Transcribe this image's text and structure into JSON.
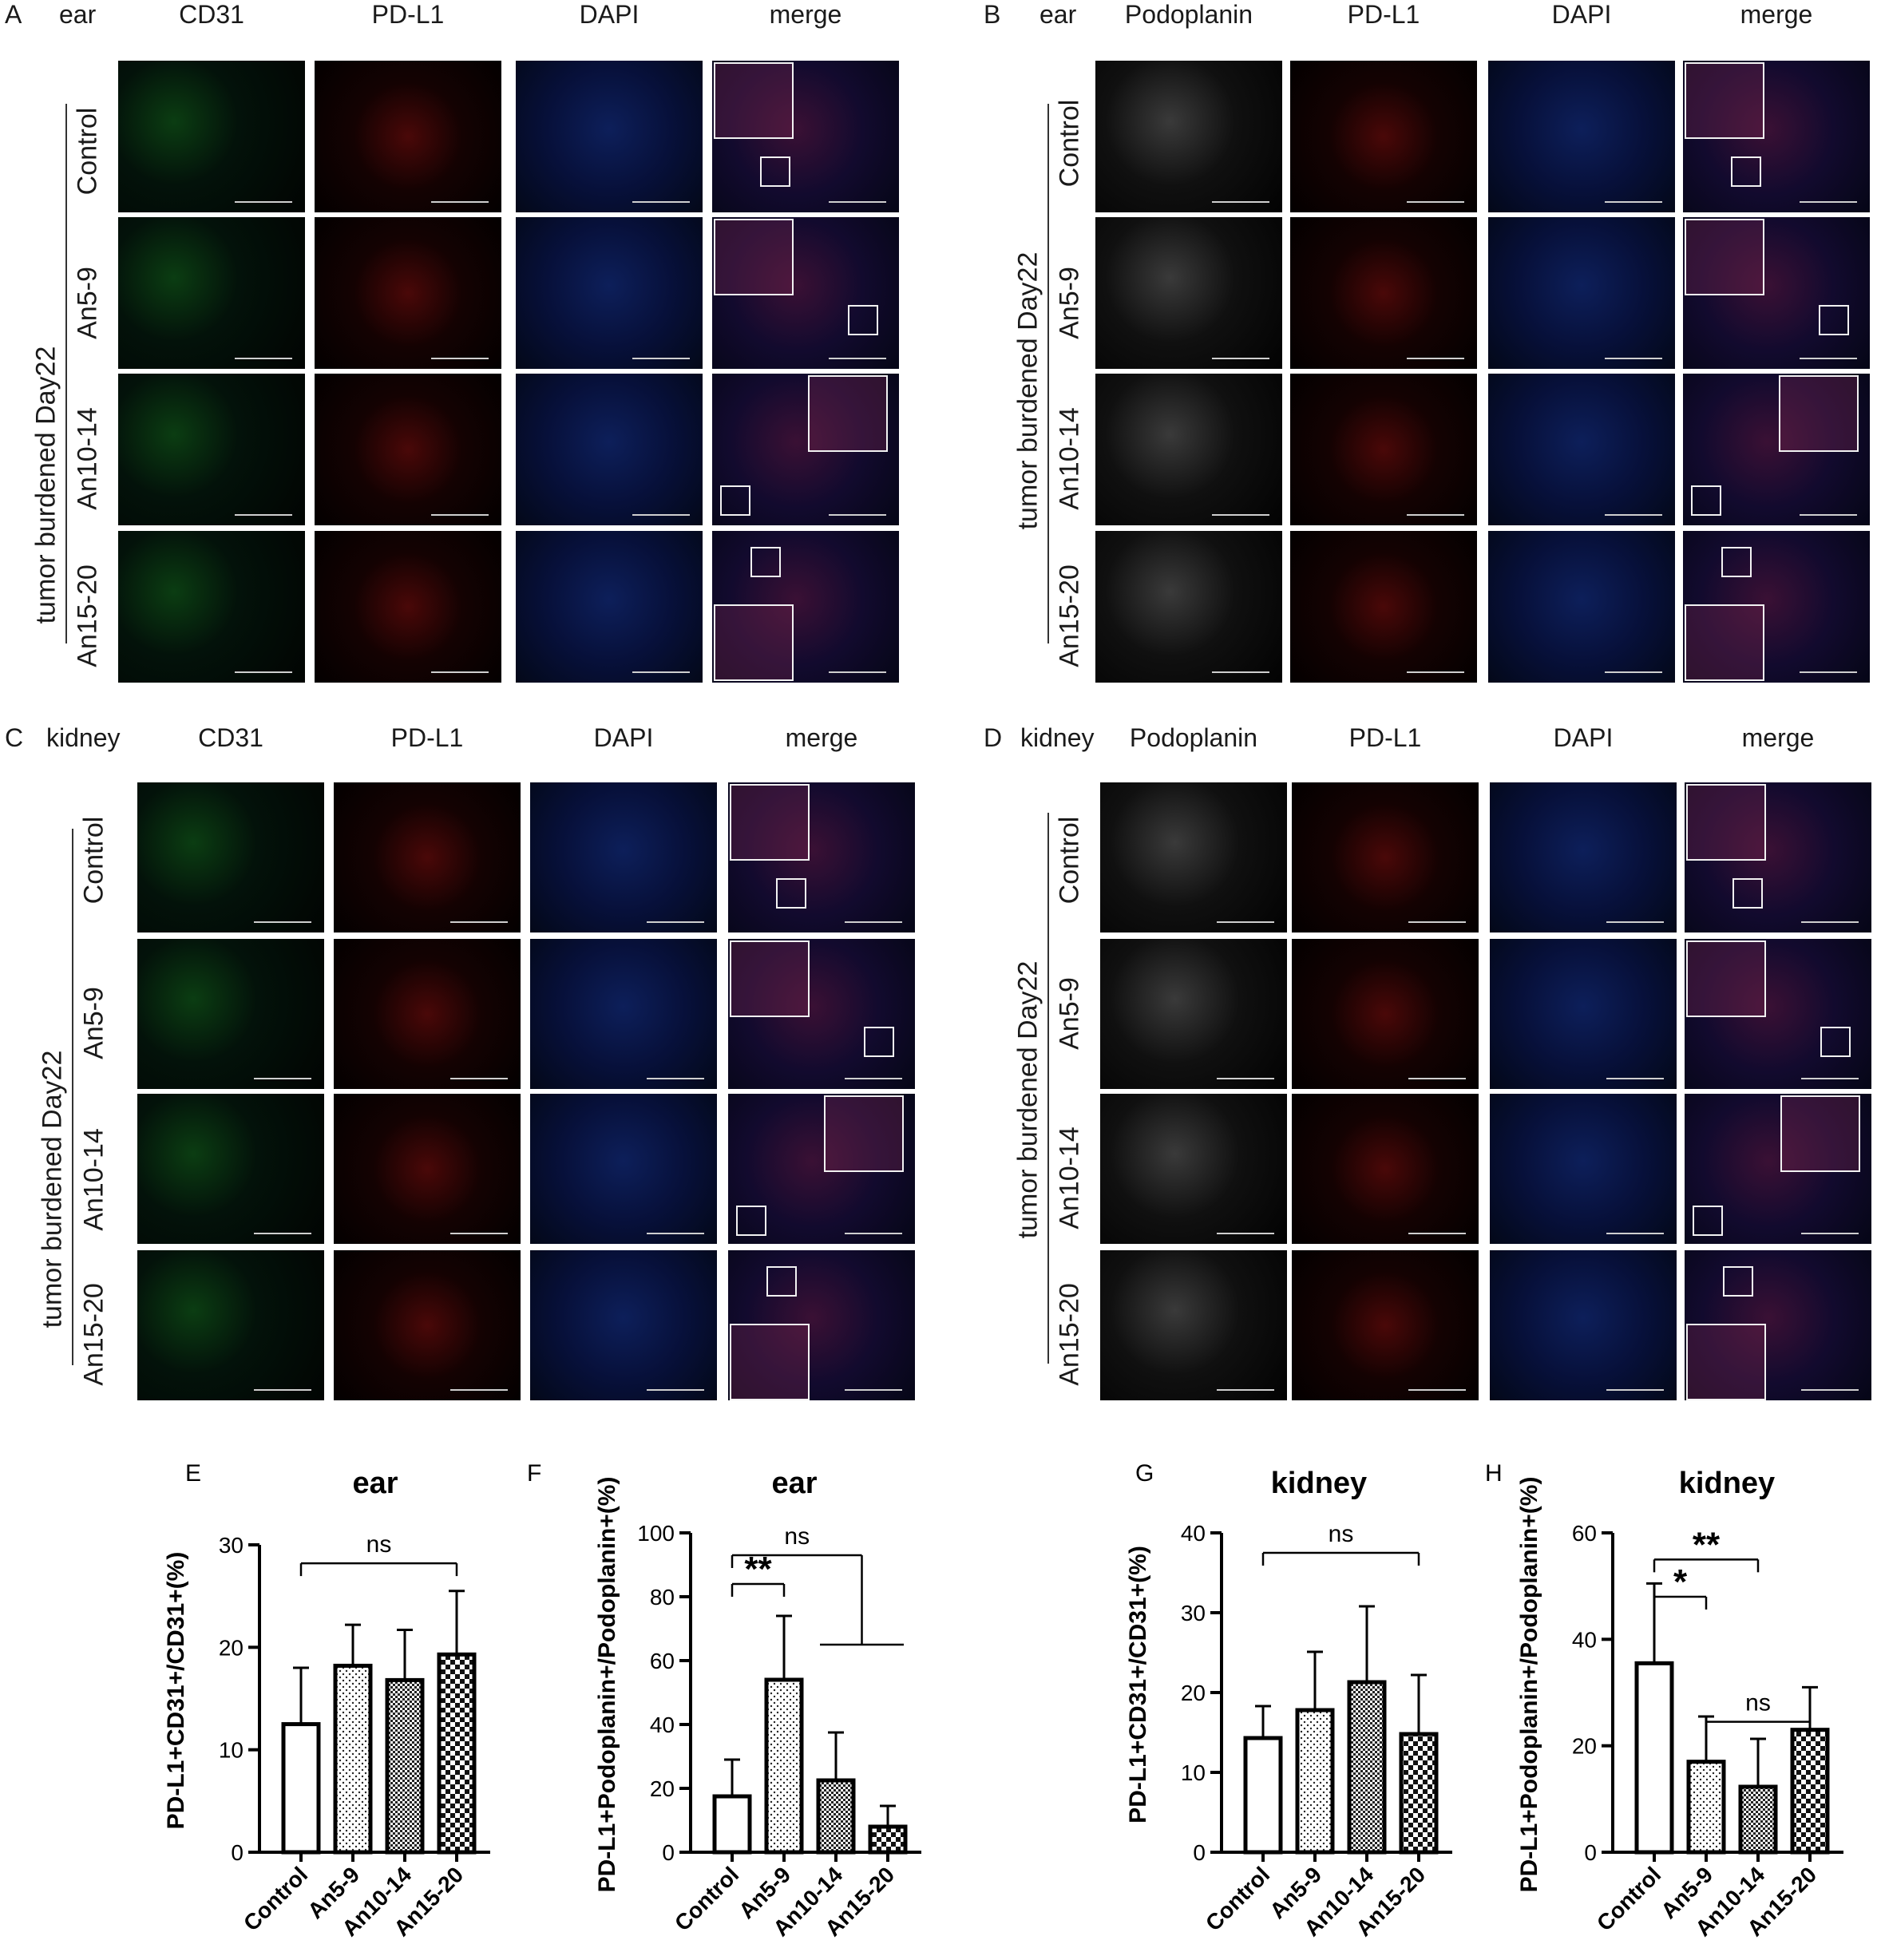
{
  "panels": {
    "A": {
      "letter": "A",
      "tissue": "ear",
      "columns": [
        "CD31",
        "PD-L1",
        "DAPI",
        "merge"
      ]
    },
    "B": {
      "letter": "B",
      "tissue": "ear",
      "columns": [
        "Podoplanin",
        "PD-L1",
        "DAPI",
        "merge"
      ]
    },
    "C": {
      "letter": "C",
      "tissue": "kidney",
      "columns": [
        "CD31",
        "PD-L1",
        "DAPI",
        "merge"
      ]
    },
    "D": {
      "letter": "D",
      "tissue": "kidney",
      "columns": [
        "Podoplanin",
        "PD-L1",
        "DAPI",
        "merge"
      ]
    }
  },
  "rows": [
    "Control",
    "An5-9",
    "An10-14",
    "An15-20"
  ],
  "group_label": "tumor burdened Day22",
  "chart_data": [
    {
      "panel": "E",
      "type": "bar",
      "title": "ear",
      "categories": [
        "Control",
        "An5-9",
        "An10-14",
        "An15-20"
      ],
      "values": [
        12.5,
        18.2,
        16.8,
        19.3
      ],
      "errors": [
        5.5,
        4.0,
        4.9,
        6.2
      ],
      "ylabel": "PD-L1+CD31+/CD31+(%)",
      "ylim": [
        0,
        30
      ],
      "yticks": [
        0,
        10,
        20,
        30
      ],
      "annotations": [
        {
          "text": "ns",
          "from": 0,
          "to": 3
        }
      ]
    },
    {
      "panel": "F",
      "type": "bar",
      "title": "ear",
      "categories": [
        "Control",
        "An5-9",
        "An10-14",
        "An15-20"
      ],
      "values": [
        17.5,
        54,
        22.5,
        8
      ],
      "errors": [
        11.5,
        20,
        15,
        6.5
      ],
      "ylabel": "PD-L1+Podoplanin+/Podoplanin+(%)",
      "ylim": [
        0,
        100
      ],
      "yticks": [
        0,
        20,
        40,
        60,
        80,
        100
      ],
      "annotations": [
        {
          "text": "**",
          "from": 0,
          "to": 1
        },
        {
          "text": "ns",
          "from": 0,
          "to": "2-3"
        }
      ]
    },
    {
      "panel": "G",
      "type": "bar",
      "title": "kidney",
      "categories": [
        "Control",
        "An5-9",
        "An10-14",
        "An15-20"
      ],
      "values": [
        14.3,
        17.8,
        21.3,
        14.8
      ],
      "errors": [
        4.0,
        7.3,
        9.5,
        7.4
      ],
      "ylabel": "PD-L1+CD31+/CD31+(%)",
      "ylim": [
        0,
        40
      ],
      "yticks": [
        0,
        10,
        20,
        30,
        40
      ],
      "annotations": [
        {
          "text": "ns",
          "from": 0,
          "to": 3
        }
      ]
    },
    {
      "panel": "H",
      "type": "bar",
      "title": "kidney",
      "categories": [
        "Control",
        "An5-9",
        "An10-14",
        "An15-20"
      ],
      "values": [
        35.5,
        17,
        12.3,
        23
      ],
      "errors": [
        15,
        8.5,
        9,
        8
      ],
      "ylabel": "PD-L1+Podoplanin+/Podoplanin+(%)",
      "ylim": [
        0,
        60
      ],
      "yticks": [
        0,
        20,
        40,
        60
      ],
      "annotations": [
        {
          "text": "**",
          "from": 0,
          "to": 2
        },
        {
          "text": "*",
          "from": 0,
          "to": 1
        },
        {
          "text": "ns",
          "from": 1,
          "to": 3
        }
      ]
    }
  ]
}
